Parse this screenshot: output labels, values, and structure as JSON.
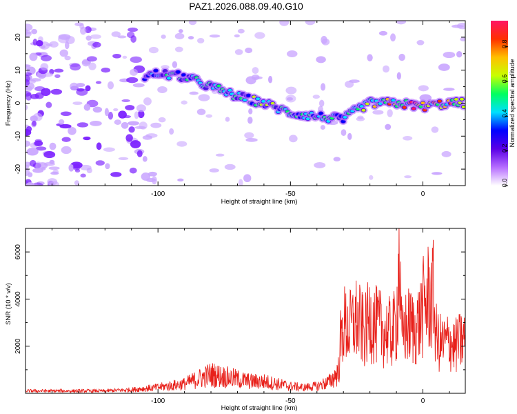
{
  "title": "PAZ1.2026.088.09.40.G10",
  "chart_data": [
    {
      "type": "heatmap",
      "xlabel": "Height of straight line (km)",
      "ylabel": "Frequency (Hz)",
      "xlim": [
        -150,
        16
      ],
      "ylim": [
        -25,
        25
      ],
      "xticks": [
        -100,
        -50,
        0
      ],
      "xtick_labels": [
        "-100",
        "-50",
        "0"
      ],
      "yticks": [
        -20,
        -10,
        0,
        10,
        20
      ],
      "ytick_labels": [
        "-20",
        "-10",
        "0",
        "10",
        "20"
      ],
      "colorbar": {
        "label": "Normalized spectral amplitude",
        "range": [
          0,
          0.95
        ],
        "ticks": [
          0.0,
          0.2,
          0.4,
          0.6,
          0.8
        ],
        "tick_labels": [
          "0.0",
          "0.2",
          "0.4",
          "0.6",
          "0.8"
        ],
        "colors": [
          "#ffffff",
          "#b66dff",
          "#5a00e6",
          "#0000ff",
          "#00e0ff",
          "#00ff60",
          "#c8ff00",
          "#ffc000",
          "#ff3000",
          "#ff1464"
        ]
      },
      "ridge": {
        "x": [
          -105,
          -100,
          -90,
          -80,
          -70,
          -60,
          -50,
          -40,
          -30,
          -25,
          -20,
          -10,
          0,
          10,
          16
        ],
        "y": [
          8,
          9,
          8,
          5,
          2,
          0,
          -3,
          -4,
          -5,
          -2,
          0,
          0,
          -1,
          0,
          0
        ],
        "amplitude": [
          0.3,
          0.45,
          0.55,
          0.5,
          0.5,
          0.6,
          0.45,
          0.45,
          0.5,
          0.5,
          0.7,
          0.9,
          0.85,
          0.8,
          0.6
        ]
      }
    },
    {
      "type": "line",
      "xlabel": "Height of straight line (km)",
      "ylabel": "SNR (10 * v/v)",
      "xlim": [
        -150,
        16
      ],
      "ylim": [
        0,
        7000
      ],
      "xticks": [
        -100,
        -50,
        0
      ],
      "xtick_labels": [
        "-100",
        "-50",
        "0"
      ],
      "yticks": [
        2000,
        4000,
        6000
      ],
      "ytick_labels": [
        "2000",
        "4000",
        "6000"
      ],
      "color": "#e8201a",
      "x": [
        -150,
        -140,
        -130,
        -120,
        -110,
        -100,
        -90,
        -85,
        -80,
        -75,
        -70,
        -65,
        -60,
        -55,
        -50,
        -45,
        -40,
        -35,
        -32,
        -31,
        -30,
        -28,
        -25,
        -22,
        -20,
        -18,
        -15,
        -12,
        -10,
        -9,
        -8,
        -7,
        -5,
        -3,
        -1,
        0,
        2,
        4,
        5,
        6,
        8,
        10,
        12,
        14,
        16
      ],
      "y": [
        100,
        100,
        100,
        100,
        150,
        250,
        400,
        600,
        800,
        700,
        600,
        500,
        500,
        400,
        300,
        250,
        300,
        500,
        900,
        2200,
        3300,
        3000,
        3500,
        2800,
        3600,
        3200,
        3000,
        2800,
        3200,
        6500,
        2500,
        3000,
        3200,
        3000,
        3500,
        4000,
        4500,
        4500,
        2700,
        2400,
        2300,
        2500,
        2200,
        2400,
        2600
      ]
    }
  ]
}
